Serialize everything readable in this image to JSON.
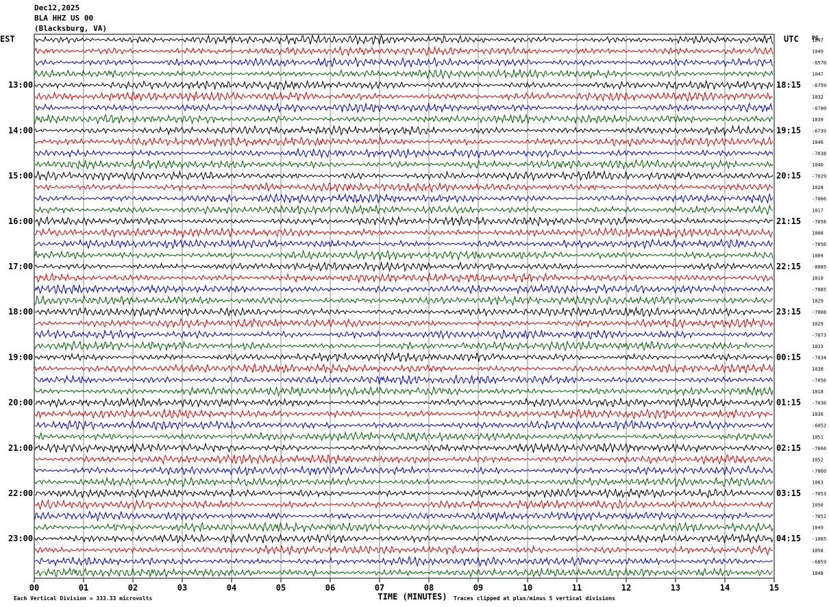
{
  "header": {
    "date": "Dec12,2025",
    "station": "BLA HHZ US 00",
    "location": "(Blacksburg, VA)",
    "left_tz": "EST",
    "right_tz": "UTC",
    "corner_label": "PG"
  },
  "chart_data": {
    "type": "line",
    "description_kind": "helicorder",
    "x_label": "TIME (MINUTES)",
    "x_ticks": [
      "00",
      "01",
      "02",
      "03",
      "04",
      "05",
      "06",
      "07",
      "08",
      "09",
      "10",
      "11",
      "12",
      "13",
      "14",
      "15"
    ],
    "xlim": [
      0,
      15
    ],
    "left_hour_labels": [
      "13:00",
      "14:00",
      "15:00",
      "16:00",
      "17:00",
      "18:00",
      "19:00",
      "20:00",
      "21:00",
      "22:00",
      "23:00"
    ],
    "right_hour_labels": [
      "18:15",
      "19:15",
      "20:15",
      "21:15",
      "22:15",
      "23:15",
      "00:15",
      "01:15",
      "02:15",
      "03:15",
      "04:15"
    ],
    "trace_colors": [
      "#000000",
      "#e00000",
      "#0000d0",
      "#006000"
    ],
    "trace_count": 48,
    "right_values": [
      "1047",
      "1049",
      "-6570",
      "1047",
      "-6759",
      "1032",
      "-6780",
      "1039",
      "-6739",
      "1040",
      "-7038",
      "1040",
      "-7029",
      "1028",
      "-7066",
      "1017",
      "-7058",
      "1008",
      "-7056",
      "1004",
      "-8085",
      "1010",
      "-7085",
      "1029",
      "-7008",
      "1029",
      "-7073",
      "1033",
      "-7034",
      "1030",
      "-7056",
      "1018",
      "-7036",
      "1036",
      "-6052",
      "1051",
      "-7066",
      "1052",
      "-7060",
      "1063",
      "-7053",
      "1050",
      "-7052",
      "1049",
      "-1085",
      "1058",
      "-6859",
      "1048"
    ],
    "footer_left": "Each Vertical Division =  333.33 microvolts",
    "footer_right": "Traces clipped at plus/minus 5 vertical divisions"
  }
}
